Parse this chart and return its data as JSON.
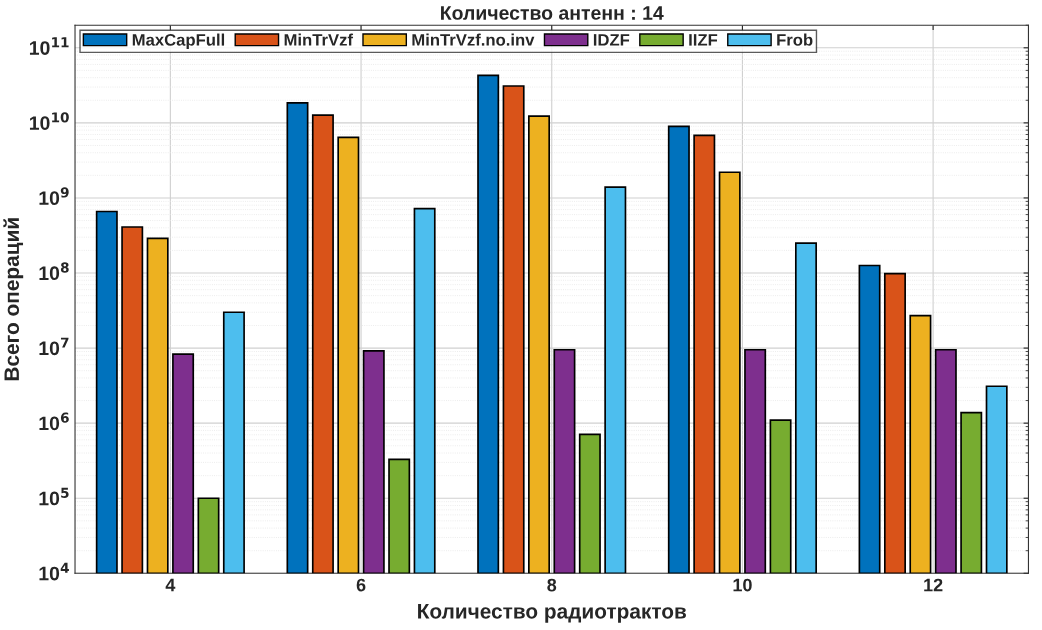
{
  "chart_data": {
    "type": "bar",
    "title": "Количество антенн : 14",
    "xlabel": "Количество радиотрактов",
    "ylabel": "Всего операций",
    "categories": [
      "4",
      "6",
      "8",
      "10",
      "12"
    ],
    "series": [
      {
        "name": "MaxCapFull",
        "color": "#0072bd",
        "values": [
          660000000.0,
          18500000000.0,
          43000000000.0,
          9000000000.0,
          126000000.0
        ]
      },
      {
        "name": "MinTrVzf",
        "color": "#d95319",
        "values": [
          410000000.0,
          12700000000.0,
          31000000000.0,
          6800000000.0,
          98000000.0
        ]
      },
      {
        "name": "MinTrVzf.no.inv",
        "color": "#edb120",
        "values": [
          290000000.0,
          6400000000.0,
          12300000000.0,
          2200000000.0,
          27000000.0
        ]
      },
      {
        "name": "IDZF",
        "color": "#7e2f8e",
        "values": [
          8300000.0,
          9200000.0,
          9500000.0,
          9500000.0,
          9500000.0
        ]
      },
      {
        "name": "IIZF",
        "color": "#77ac30",
        "values": [
          100000.0,
          330000.0,
          710000.0,
          1100000.0,
          1380000.0
        ]
      },
      {
        "name": "Frob",
        "color": "#4dbeee",
        "values": [
          30000000.0,
          720000000.0,
          1390000000.0,
          250000000.0,
          3100000.0
        ]
      }
    ],
    "log": "y",
    "ylim": [
      10000,
      200000000000
    ],
    "yticks": [
      {
        "value": 10000,
        "label": "10$^{4}$"
      },
      {
        "value": 100000,
        "label": "10$^{5}$"
      },
      {
        "value": 1000000,
        "label": "10$^{6}$"
      },
      {
        "value": 10000000,
        "label": "10$^{7}$"
      },
      {
        "value": 100000000,
        "label": "10$^{8}$"
      },
      {
        "value": 1000000000,
        "label": "10$^{9}$"
      },
      {
        "value": 10000000000,
        "label": "10$^{10}$"
      },
      {
        "value": 100000000000,
        "label": "10$^{11}$"
      }
    ],
    "grid": true,
    "legend": "top left"
  }
}
